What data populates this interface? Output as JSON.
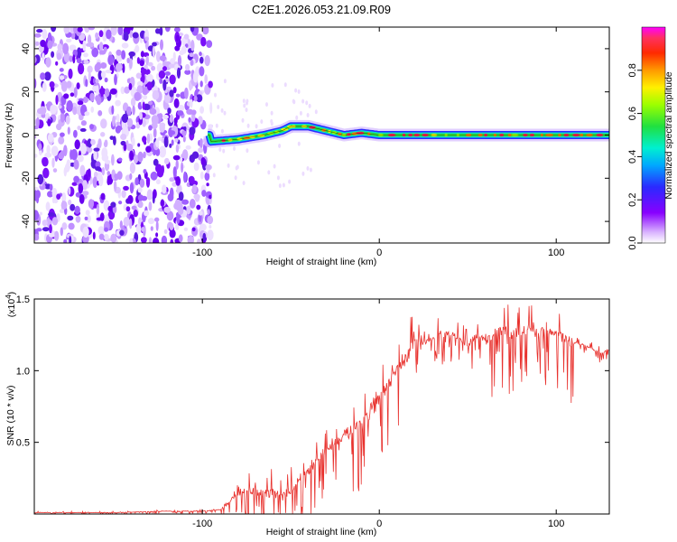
{
  "chart_data": [
    {
      "type": "heatmap",
      "title": "C2E1.2026.053.21.09.R09",
      "xlabel": "Height of straight line (km)",
      "ylabel": "Frequency (Hz)",
      "xlim": [
        -195,
        130
      ],
      "ylim": [
        -50,
        50
      ],
      "x_ticks": [
        -100,
        0,
        100
      ],
      "y_ticks": [
        40,
        20,
        0,
        -20,
        -40
      ],
      "colorbar": {
        "label": "Normalized spectral amplitude",
        "range": [
          0,
          1
        ],
        "ticks": [
          0.0,
          0.2,
          0.4,
          0.6,
          0.8
        ]
      },
      "description_points": {
        "noise_region_x": [
          -195,
          -95
        ],
        "ridge_x": [
          -95,
          -80,
          -65,
          -55,
          -50,
          -40,
          -30,
          -20,
          -10,
          0,
          10,
          20,
          40,
          60,
          80,
          100,
          130
        ],
        "ridge_freq": [
          -3,
          -2,
          0,
          2,
          4,
          4,
          2,
          0,
          1,
          0,
          0,
          0,
          0,
          0,
          0,
          0,
          0
        ]
      }
    },
    {
      "type": "line",
      "xlabel": "Height of straight line (km)",
      "ylabel": "SNR (10 * v/v)",
      "y_multiplier": "(x10",
      "y_multiplier_exp": "4",
      "y_multiplier_close": ")",
      "xlim": [
        -195,
        130
      ],
      "ylim": [
        0,
        1.5
      ],
      "x_ticks": [
        -100,
        0,
        100
      ],
      "y_ticks": [
        "1.5",
        "1.0",
        "0.5"
      ],
      "y_tick_values": [
        1.5,
        1.0,
        0.5
      ],
      "series": [
        {
          "name": "SNR",
          "color": "#e8322e",
          "x": [
            -195,
            -170,
            -150,
            -120,
            -100,
            -90,
            -85,
            -80,
            -75,
            -70,
            -65,
            -60,
            -55,
            -50,
            -45,
            -40,
            -35,
            -30,
            -25,
            -20,
            -15,
            -10,
            -5,
            0,
            5,
            10,
            15,
            20,
            25,
            30,
            35,
            40,
            45,
            50,
            55,
            60,
            65,
            70,
            75,
            80,
            85,
            90,
            95,
            100,
            105,
            110,
            115,
            120,
            125,
            130
          ],
          "y": [
            0.01,
            0.01,
            0.01,
            0.02,
            0.02,
            0.03,
            0.08,
            0.15,
            0.18,
            0.16,
            0.14,
            0.15,
            0.12,
            0.17,
            0.25,
            0.3,
            0.38,
            0.45,
            0.5,
            0.55,
            0.58,
            0.62,
            0.7,
            0.8,
            0.9,
            1.0,
            1.08,
            1.2,
            1.2,
            1.22,
            1.25,
            1.27,
            1.22,
            1.18,
            1.25,
            1.22,
            1.25,
            1.28,
            1.25,
            1.27,
            1.3,
            1.25,
            1.28,
            1.27,
            1.22,
            1.2,
            1.18,
            1.15,
            1.12,
            1.15
          ]
        }
      ]
    }
  ]
}
